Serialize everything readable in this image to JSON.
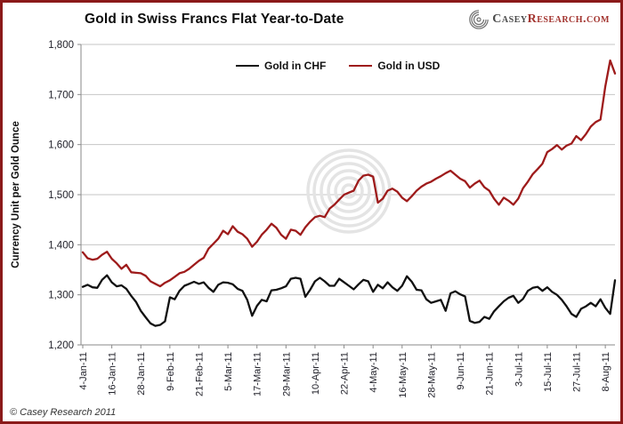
{
  "header": {
    "title": "Gold in Swiss Francs Flat Year-to-Date",
    "logo": {
      "part1": "Casey",
      "part2": "Research.com"
    }
  },
  "footer": {
    "copyright": "© Casey Research 2011"
  },
  "chart_data": {
    "type": "line",
    "title": "Gold in Swiss Francs Flat Year-to-Date",
    "xlabel": "",
    "ylabel": "Currency Unit per Gold Ounce",
    "ylim": [
      1200,
      1800
    ],
    "ytick_labels": [
      "1,200",
      "1,300",
      "1,400",
      "1,500",
      "1,600",
      "1,700",
      "1,800"
    ],
    "yticks": [
      1200,
      1300,
      1400,
      1500,
      1600,
      1700,
      1800
    ],
    "grid": "horizontal",
    "legend_position": "top-center-inside",
    "x_tick_labels": [
      "4-Jan-11",
      "16-Jan-11",
      "28-Jan-11",
      "9-Feb-11",
      "21-Feb-11",
      "5-Mar-11",
      "17-Mar-11",
      "29-Mar-11",
      "10-Apr-11",
      "22-Apr-11",
      "4-May-11",
      "16-May-11",
      "28-May-11",
      "9-Jun-11",
      "21-Jun-11",
      "3-Jul-11",
      "15-Jul-11",
      "27-Jul-11",
      "8-Aug-11"
    ],
    "x_tick_days": [
      0,
      12,
      24,
      36,
      48,
      60,
      72,
      84,
      96,
      108,
      120,
      132,
      144,
      156,
      168,
      180,
      192,
      204,
      216
    ],
    "total_days": 220,
    "sample_step_days": 2,
    "watermark": "casey-research-spiral",
    "series": [
      {
        "name": "Gold in CHF",
        "color": "#111111",
        "values": [
          1316,
          1320,
          1315,
          1314,
          1330,
          1339,
          1325,
          1317,
          1319,
          1312,
          1298,
          1286,
          1268,
          1255,
          1243,
          1238,
          1240,
          1247,
          1295,
          1291,
          1308,
          1318,
          1322,
          1326,
          1322,
          1325,
          1314,
          1306,
          1320,
          1325,
          1324,
          1321,
          1312,
          1308,
          1290,
          1258,
          1278,
          1290,
          1287,
          1309,
          1310,
          1313,
          1317,
          1332,
          1334,
          1332,
          1296,
          1310,
          1327,
          1334,
          1327,
          1318,
          1318,
          1332,
          1325,
          1318,
          1311,
          1321,
          1330,
          1327,
          1306,
          1320,
          1313,
          1325,
          1315,
          1308,
          1318,
          1337,
          1326,
          1310,
          1309,
          1291,
          1284,
          1287,
          1290,
          1268,
          1303,
          1307,
          1301,
          1297,
          1248,
          1244,
          1246,
          1256,
          1252,
          1267,
          1277,
          1287,
          1294,
          1298,
          1284,
          1292,
          1308,
          1314,
          1316,
          1308,
          1315,
          1306,
          1300,
          1290,
          1277,
          1262,
          1256,
          1272,
          1277,
          1284,
          1277,
          1291,
          1274,
          1262,
          1329
        ]
      },
      {
        "name": "Gold in USD",
        "color": "#9E1B1B",
        "values": [
          1385,
          1373,
          1370,
          1372,
          1380,
          1386,
          1372,
          1363,
          1352,
          1360,
          1345,
          1344,
          1343,
          1338,
          1327,
          1322,
          1317,
          1324,
          1329,
          1336,
          1343,
          1346,
          1352,
          1360,
          1368,
          1374,
          1392,
          1402,
          1412,
          1428,
          1421,
          1437,
          1426,
          1421,
          1412,
          1396,
          1406,
          1420,
          1430,
          1442,
          1434,
          1420,
          1412,
          1430,
          1428,
          1420,
          1435,
          1446,
          1455,
          1458,
          1455,
          1472,
          1480,
          1490,
          1500,
          1504,
          1508,
          1528,
          1538,
          1540,
          1536,
          1484,
          1492,
          1508,
          1512,
          1506,
          1494,
          1487,
          1497,
          1508,
          1516,
          1522,
          1526,
          1532,
          1537,
          1543,
          1548,
          1540,
          1532,
          1527,
          1514,
          1522,
          1528,
          1515,
          1508,
          1492,
          1480,
          1494,
          1488,
          1480,
          1492,
          1513,
          1526,
          1541,
          1551,
          1562,
          1585,
          1591,
          1599,
          1590,
          1598,
          1602,
          1617,
          1609,
          1621,
          1636,
          1645,
          1650,
          1716,
          1768,
          1742
        ]
      }
    ]
  }
}
